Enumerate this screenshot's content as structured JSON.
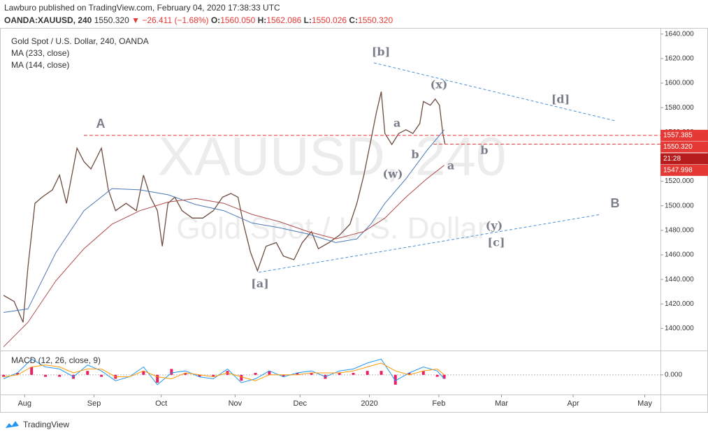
{
  "header": {
    "byline": "Lawburo published on TradingView.com, February 04, 2020 17:38:33 UTC",
    "symbol": "OANDA:XAUUSD, 240",
    "last": "1550.320",
    "change": "▼ −26.411 (−1.68%)",
    "ohlc": [
      {
        "label": "O:",
        "value": "1560.050"
      },
      {
        "label": "H:",
        "value": "1562.086"
      },
      {
        "label": "L:",
        "value": "1550.026"
      },
      {
        "label": "C:",
        "value": "1550.320"
      }
    ]
  },
  "watermark": {
    "symbol": "XAUUSD, 240",
    "name": "Gold Spot / U.S. Dollar"
  },
  "footer": {
    "brand": "TradingView"
  },
  "chart_data": [
    {
      "type": "line",
      "xlim": [
        20,
        315
      ],
      "ylim": [
        1382,
        1645
      ],
      "xticks": [
        {
          "value": 31,
          "label": "Aug"
        },
        {
          "value": 62,
          "label": "Sep"
        },
        {
          "value": 92,
          "label": "Oct"
        },
        {
          "value": 125,
          "label": "Nov"
        },
        {
          "value": 154,
          "label": "Dec"
        },
        {
          "value": 185,
          "label": "2020"
        },
        {
          "value": 216,
          "label": "Feb"
        },
        {
          "value": 244,
          "label": "Mar"
        },
        {
          "value": 276,
          "label": "Apr"
        },
        {
          "value": 308,
          "label": "May"
        }
      ],
      "yticks": [
        {
          "value": 1400,
          "label": "1400.000"
        },
        {
          "value": 1420,
          "label": "1420.000"
        },
        {
          "value": 1440,
          "label": "1440.000"
        },
        {
          "value": 1460,
          "label": "1460.000"
        },
        {
          "value": 1480,
          "label": "1480.000"
        },
        {
          "value": 1500,
          "label": "1500.000"
        },
        {
          "value": 1520,
          "label": "1520.000"
        },
        {
          "value": 1540,
          "label": "1540.000"
        },
        {
          "value": 1560,
          "label": "1560.000"
        },
        {
          "value": 1580,
          "label": "1580.000"
        },
        {
          "value": 1600,
          "label": "1600.000"
        },
        {
          "value": 1620,
          "label": "1620.000"
        },
        {
          "value": 1640,
          "label": "1640.000"
        }
      ],
      "grid": false,
      "series": [
        {
          "name": "Gold Spot / U.S. Dollar, 240, OANDA",
          "color": "#6d4c41",
          "x": [
            21.6,
            26.3,
            30.3,
            32.5,
            35.6,
            38.8,
            43.4,
            46.6,
            49.7,
            54.4,
            57.5,
            60.6,
            65.3,
            68.4,
            71.6,
            76.3,
            80.9,
            84.1,
            87.2,
            90.3,
            92.5,
            95,
            98.1,
            101.3,
            105.9,
            110.6,
            115.3,
            119.4,
            123.1,
            126.3,
            128.8,
            131.9,
            135,
            138.8,
            143.4,
            146.6,
            151.3,
            155,
            159.1,
            162.2,
            166.9,
            171.6,
            176.3,
            179.4,
            182.5,
            185.6,
            188.1,
            190.3,
            191.9,
            195,
            198.1,
            201.3,
            204.4,
            207.5,
            209.1,
            212.2,
            214.4,
            216.3,
            217.8,
            218.8
          ],
          "values": [
            1427,
            1422,
            1405,
            1450,
            1502,
            1507,
            1513,
            1525,
            1502,
            1547,
            1536,
            1530,
            1547,
            1513,
            1496,
            1502,
            1496,
            1525,
            1507,
            1496,
            1467,
            1502,
            1507,
            1496,
            1490,
            1490,
            1496,
            1507,
            1510,
            1507,
            1485,
            1462,
            1447,
            1467,
            1470,
            1459,
            1456,
            1470,
            1479,
            1465,
            1470,
            1476,
            1485,
            1502,
            1525,
            1553,
            1576,
            1593,
            1559,
            1550,
            1559,
            1562,
            1559,
            1567,
            1585,
            1582,
            1587,
            1582,
            1559,
            1550
          ]
        },
        {
          "name": "MA (233, close)",
          "color": "#4a78b5",
          "x": [
            21.6,
            32.5,
            45,
            57.5,
            70,
            82.5,
            95,
            107.5,
            120,
            132.5,
            145,
            157.5,
            170,
            179.4,
            185.6,
            191.9,
            201.3,
            210.6,
            218.4
          ],
          "values": [
            1413,
            1416,
            1462,
            1496,
            1514,
            1513,
            1509,
            1501,
            1496,
            1486,
            1482,
            1477,
            1470,
            1473,
            1485,
            1502,
            1522,
            1545,
            1562
          ]
        },
        {
          "name": "MA (144, close)",
          "color": "#b04a4a",
          "x": [
            21.6,
            32.5,
            45,
            57.5,
            70,
            82.5,
            95,
            107.5,
            120,
            132.5,
            145,
            157.5,
            170,
            182.5,
            191.9,
            201.3,
            210.6,
            218.4
          ],
          "values": [
            1385,
            1405,
            1439,
            1465,
            1485,
            1496,
            1503,
            1506,
            1502,
            1493,
            1487,
            1479,
            1473,
            1479,
            1490,
            1507,
            1522,
            1533
          ]
        }
      ],
      "price_labels": [
        {
          "value": 1557.385,
          "label": "1557.385",
          "color": "#e53935",
          "dashed": true
        },
        {
          "value": 1550.32,
          "label": "1550.320",
          "color": "#e53935",
          "dashed": true
        },
        {
          "value": 1547.998,
          "label": "1547.998",
          "color": "#e53935",
          "dashed": false
        }
      ],
      "countdown": "21:28",
      "annotations": [
        "[b]",
        "(x)",
        "[d]",
        "A",
        "a",
        "b",
        "(w)",
        "b",
        "a",
        "B",
        "(y)",
        "[c]",
        "[a]"
      ]
    },
    {
      "type": "macd",
      "title": "MACD (12, 26, close, 9)",
      "xlim": [
        20,
        315
      ],
      "ylim": [
        -10,
        12
      ],
      "yticks": [
        {
          "value": 0,
          "label": "0.000"
        }
      ],
      "x": [
        21.6,
        27.8,
        34.1,
        40.3,
        46.6,
        52.8,
        59.1,
        65.3,
        71.6,
        77.8,
        84.1,
        90.3,
        96.6,
        102.8,
        109.1,
        115.3,
        121.6,
        127.8,
        134.1,
        140.3,
        146.6,
        152.8,
        159.1,
        165.3,
        171.6,
        177.8,
        184.1,
        190.3,
        196.6,
        202.8,
        209.1,
        215.3,
        218.4
      ],
      "series": [
        {
          "type": "bar",
          "color": "#e91e63",
          "values": [
            -1,
            1,
            4,
            -1,
            -1,
            -2,
            2,
            -1,
            -2,
            0,
            2,
            -4,
            3,
            1,
            -1,
            -1,
            2,
            -3,
            1,
            2,
            -1,
            1,
            1,
            -2,
            1,
            1,
            2,
            2,
            -5,
            1,
            2,
            -1,
            -2
          ]
        },
        {
          "type": "line",
          "color": "#2196f3",
          "values": [
            -2,
            1,
            8,
            4,
            3,
            -1,
            5,
            2,
            -3,
            -1,
            4,
            -5,
            1,
            2,
            -1,
            -2,
            3,
            -4,
            -2,
            2,
            -1,
            1,
            2,
            -1,
            2,
            3,
            6,
            8,
            -3,
            1,
            4,
            2,
            -2
          ]
        },
        {
          "type": "line",
          "color": "#ff9800",
          "values": [
            -1,
            0,
            4,
            5,
            4,
            1,
            3,
            3,
            -1,
            -1,
            2,
            -1,
            -2,
            1,
            0,
            -1,
            1,
            -1,
            -3,
            0,
            0,
            0,
            1,
            1,
            1,
            2,
            4,
            6,
            2,
            0,
            2,
            3,
            0
          ]
        }
      ]
    }
  ]
}
